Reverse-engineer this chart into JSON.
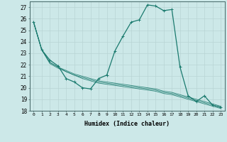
{
  "title": "",
  "xlabel": "Humidex (Indice chaleur)",
  "xlim": [
    -0.5,
    23.5
  ],
  "ylim": [
    18,
    27.5
  ],
  "yticks": [
    18,
    19,
    20,
    21,
    22,
    23,
    24,
    25,
    26,
    27
  ],
  "xticks": [
    0,
    1,
    2,
    3,
    4,
    5,
    6,
    7,
    8,
    9,
    10,
    11,
    12,
    13,
    14,
    15,
    16,
    17,
    18,
    19,
    20,
    21,
    22,
    23
  ],
  "bg_color": "#cce8e8",
  "line_color": "#1a7a6e",
  "grid_color": "#b8d4d4",
  "series_main": [
    25.7,
    23.3,
    22.4,
    21.9,
    20.8,
    20.5,
    20.0,
    19.9,
    20.8,
    21.1,
    23.2,
    24.5,
    25.7,
    25.9,
    27.2,
    27.1,
    26.7,
    26.8,
    21.8,
    19.3,
    18.8,
    19.3,
    18.5,
    18.3
  ],
  "series_linear1": [
    25.7,
    23.3,
    22.2,
    21.8,
    21.5,
    21.2,
    21.0,
    20.8,
    20.6,
    20.5,
    20.4,
    20.3,
    20.2,
    20.1,
    20.0,
    19.9,
    19.7,
    19.6,
    19.4,
    19.2,
    19.0,
    18.8,
    18.6,
    18.4
  ],
  "series_linear2": [
    25.7,
    23.3,
    22.2,
    21.8,
    21.4,
    21.1,
    20.9,
    20.7,
    20.5,
    20.4,
    20.3,
    20.2,
    20.1,
    20.0,
    19.9,
    19.8,
    19.6,
    19.5,
    19.3,
    19.1,
    18.9,
    18.7,
    18.5,
    18.3
  ],
  "series_linear3": [
    25.7,
    23.3,
    22.1,
    21.7,
    21.4,
    21.1,
    20.8,
    20.6,
    20.4,
    20.3,
    20.2,
    20.1,
    20.0,
    19.9,
    19.8,
    19.7,
    19.5,
    19.4,
    19.2,
    19.0,
    18.8,
    18.6,
    18.4,
    18.2
  ]
}
